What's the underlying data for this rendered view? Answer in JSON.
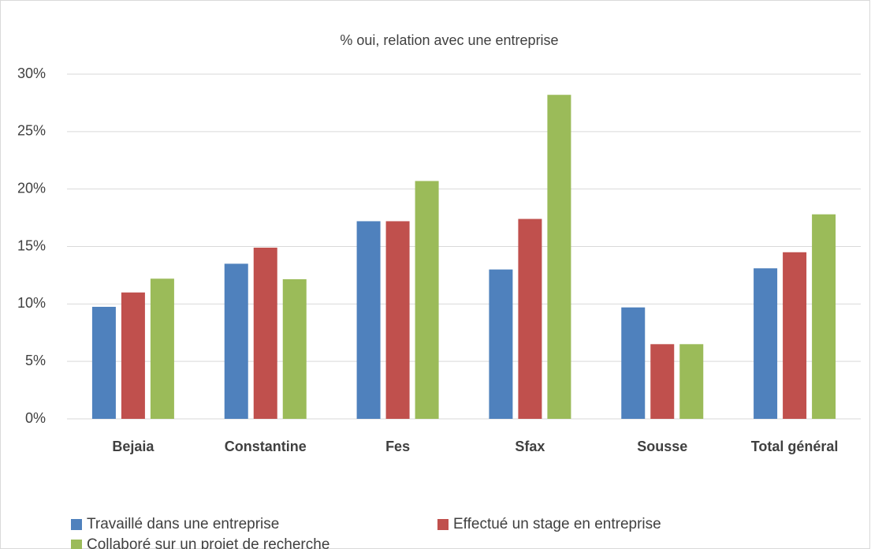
{
  "chart_data": {
    "type": "bar",
    "title": "% oui, relation avec une entreprise",
    "categories": [
      "Bejaia",
      "Constantine",
      "Fes",
      "Sfax",
      "Sousse",
      "Total général"
    ],
    "series": [
      {
        "name": "Travaillé dans une entreprise",
        "color": "#4f81bd",
        "values": [
          9.75,
          13.5,
          17.2,
          13.0,
          9.7,
          13.1
        ]
      },
      {
        "name": "Effectué un stage en entreprise",
        "color": "#c0504d",
        "values": [
          11.0,
          14.9,
          17.2,
          17.4,
          6.5,
          14.5
        ]
      },
      {
        "name": "Collaboré sur un projet de recherche",
        "color": "#9bbb59",
        "values": [
          12.2,
          12.15,
          20.7,
          28.2,
          6.5,
          17.8
        ]
      }
    ],
    "ylim": [
      0,
      30
    ],
    "yticks": [
      {
        "value": 0,
        "label": "0%"
      },
      {
        "value": 5,
        "label": "5%"
      },
      {
        "value": 10,
        "label": "10%"
      },
      {
        "value": 15,
        "label": "15%"
      },
      {
        "value": 20,
        "label": "20%"
      },
      {
        "value": 25,
        "label": "25%"
      },
      {
        "value": 30,
        "label": "30%"
      }
    ],
    "grid": true,
    "legend": "bottom"
  }
}
